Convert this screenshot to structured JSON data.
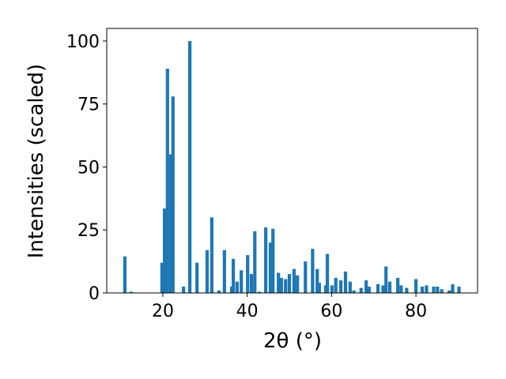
{
  "chart_data": {
    "type": "bar",
    "x_label": "2θ (°)",
    "y_label": "Intensities (scaled)",
    "color": "#1f77b4",
    "x": [
      11.0,
      12.5,
      19.8,
      20.4,
      21.1,
      21.9,
      22.4,
      24.9,
      26.4,
      28.1,
      30.5,
      31.6,
      33.3,
      34.6,
      36.3,
      36.7,
      37.6,
      38.6,
      40.1,
      41.0,
      41.8,
      42.9,
      44.4,
      45.5,
      46.1,
      47.4,
      48.1,
      49.1,
      50.0,
      51.1,
      51.9,
      53.8,
      55.5,
      56.6,
      57.1,
      58.6,
      59.0,
      60.1,
      61.0,
      62.2,
      63.3,
      64.4,
      65.3,
      67.0,
      68.2,
      68.9,
      71.0,
      72.2,
      72.9,
      73.8,
      75.7,
      76.5,
      77.8,
      80.0,
      81.5,
      82.5,
      84.2,
      85.1,
      86.1,
      87.9,
      88.7,
      90.2
    ],
    "values": [
      14.5,
      0.5,
      12,
      33.5,
      89,
      55,
      78,
      2.5,
      100,
      12,
      17,
      30,
      1,
      17,
      2.5,
      13.5,
      4.5,
      9,
      15,
      7.5,
      24.5,
      0.5,
      26,
      20,
      25.5,
      8,
      6,
      5.5,
      7.5,
      9.5,
      7,
      12.5,
      17.5,
      9.5,
      4,
      3,
      15.5,
      3,
      6,
      5,
      8.5,
      4.5,
      1,
      2,
      5,
      2.5,
      3.5,
      3,
      10.5,
      4.5,
      6,
      3,
      2,
      5.5,
      2.5,
      3,
      2.5,
      2.5,
      1.5,
      1,
      3.5,
      2.5
    ],
    "xlim": [
      6.7,
      94.6
    ],
    "ylim": [
      0,
      105
    ],
    "xticks": [
      20,
      40,
      60,
      80
    ],
    "yticks": [
      0,
      25,
      50,
      75,
      100
    ]
  }
}
